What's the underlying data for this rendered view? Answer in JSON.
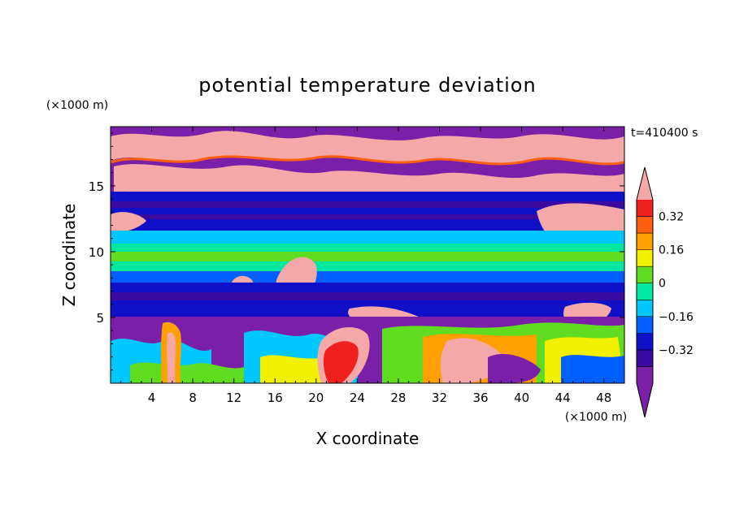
{
  "chart_data": {
    "type": "heatmap",
    "title": "potential temperature deviation",
    "xlabel": "X coordinate",
    "ylabel": "Z coordinate",
    "x_unit": "(×1000 m)",
    "y_unit": "(×1000 m)",
    "time_label": "t=410400 s",
    "xlim": [
      0,
      50
    ],
    "ylim": [
      0,
      19.5
    ],
    "x_ticks": [
      4,
      8,
      12,
      16,
      20,
      24,
      28,
      32,
      36,
      40,
      44,
      48
    ],
    "y_ticks": [
      5,
      10,
      15
    ],
    "colorbar": {
      "levels": [
        -0.48,
        -0.4,
        -0.32,
        -0.24,
        -0.16,
        -0.08,
        0,
        0.08,
        0.16,
        0.24,
        0.32,
        0.4
      ],
      "tick_labels": [
        "0.32",
        "0.16",
        "0",
        "−0.16",
        "−0.32"
      ],
      "tick_values": [
        0.32,
        0.16,
        0,
        -0.16,
        -0.32
      ],
      "colors": [
        "#7a1fa8",
        "#3a0aa0",
        "#1010c8",
        "#0060ff",
        "#00c8ff",
        "#00e8a0",
        "#60dd20",
        "#f0f000",
        "#ffa000",
        "#ff6010",
        "#f02020",
        "#f5a8a8"
      ]
    },
    "layers": [
      {
        "name": "upper pink band (z ~16-19 km)",
        "value": 0.45
      },
      {
        "name": "upper purple band (z ~13.5-19.5 km)",
        "value": -0.45
      },
      {
        "name": "mid blue band (z ~11-15 km)",
        "value": -0.35
      },
      {
        "name": "cyan/green band (z ~8-12 km)",
        "value": -0.1
      },
      {
        "name": "lower blue band (z ~5-8 km)",
        "value": -0.3
      },
      {
        "name": "boundary-layer convection (z 0-5 km)",
        "value": 0.1
      }
    ],
    "grid": false,
    "legend": "right"
  }
}
